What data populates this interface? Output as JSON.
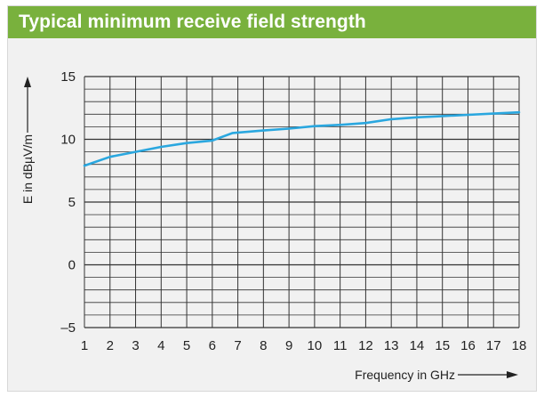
{
  "title": "Typical minimum receive field strength",
  "colors": {
    "title_bar": "#79b13d",
    "title_text": "#ffffff",
    "panel_background": "#f1f1f1",
    "series_line": "#2aa7df",
    "grid": "#333333",
    "axis_arrow": "#222222"
  },
  "chart_data": {
    "type": "line",
    "xlabel": "Frequency in GHz",
    "ylabel": "E in dBµV/m",
    "xlim": [
      1,
      18
    ],
    "ylim": [
      -5,
      15
    ],
    "grid": true,
    "x_minor_gridlines_per_unit": 1,
    "y_minor_gridlines_per_unit": 1,
    "x_ticks": [
      "1",
      "2",
      "3",
      "4",
      "5",
      "6",
      "7",
      "8",
      "9",
      "10",
      "11",
      "12",
      "13",
      "14",
      "15",
      "16",
      "17",
      "18"
    ],
    "y_ticks": [
      "–5",
      "0",
      "5",
      "10",
      "15"
    ],
    "y_tick_values": [
      -5,
      0,
      5,
      10,
      15
    ],
    "series": [
      {
        "x": [
          1,
          2,
          3,
          4,
          5,
          6,
          6.8,
          8,
          9,
          10,
          11,
          12,
          13,
          14,
          15,
          16,
          17,
          18
        ],
        "y": [
          7.9,
          8.6,
          9.0,
          9.4,
          9.7,
          9.9,
          10.5,
          10.7,
          10.85,
          11.05,
          11.15,
          11.3,
          11.6,
          11.75,
          11.85,
          11.95,
          12.05,
          12.15
        ]
      }
    ]
  }
}
